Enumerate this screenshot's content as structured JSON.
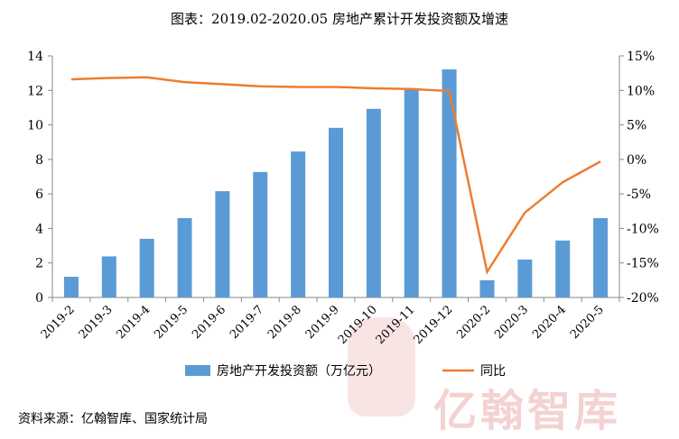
{
  "title": "图表：2019.02-2020.05 房地产累计开发投资额及增速",
  "source": "资料来源：亿翰智库、国家统计局",
  "watermark": "亿翰智库",
  "chart_data": {
    "type": "bar+line",
    "categories": [
      "2019-2",
      "2019-3",
      "2019-4",
      "2019-5",
      "2019-6",
      "2019-7",
      "2019-8",
      "2019-9",
      "2019-10",
      "2019-11",
      "2019-12",
      "2020-2",
      "2020-3",
      "2020-4",
      "2020-5"
    ],
    "series": [
      {
        "name": "房地产开发投资额（万亿元）",
        "type": "bar",
        "axis": "left",
        "color": "#5b9bd5",
        "values": [
          1.2,
          2.38,
          3.4,
          4.6,
          6.16,
          7.27,
          8.46,
          9.83,
          10.93,
          12.1,
          13.22,
          1.0,
          2.2,
          3.3,
          4.6
        ]
      },
      {
        "name": "同比",
        "type": "line",
        "axis": "right",
        "color": "#ed7d31",
        "values": [
          11.6,
          11.8,
          11.9,
          11.2,
          10.9,
          10.6,
          10.5,
          10.5,
          10.3,
          10.2,
          9.9,
          -16.3,
          -7.7,
          -3.3,
          -0.3
        ]
      }
    ],
    "left_axis": {
      "ylim": [
        0,
        14
      ],
      "ticks": [
        "0",
        "2",
        "4",
        "6",
        "8",
        "10",
        "12",
        "14"
      ]
    },
    "right_axis": {
      "ylim": [
        -20,
        15
      ],
      "ticks": [
        "-20%",
        "-15%",
        "-10%",
        "-5%",
        "0%",
        "5%",
        "10%",
        "15%"
      ]
    },
    "grid": false,
    "legend_position": "bottom"
  }
}
